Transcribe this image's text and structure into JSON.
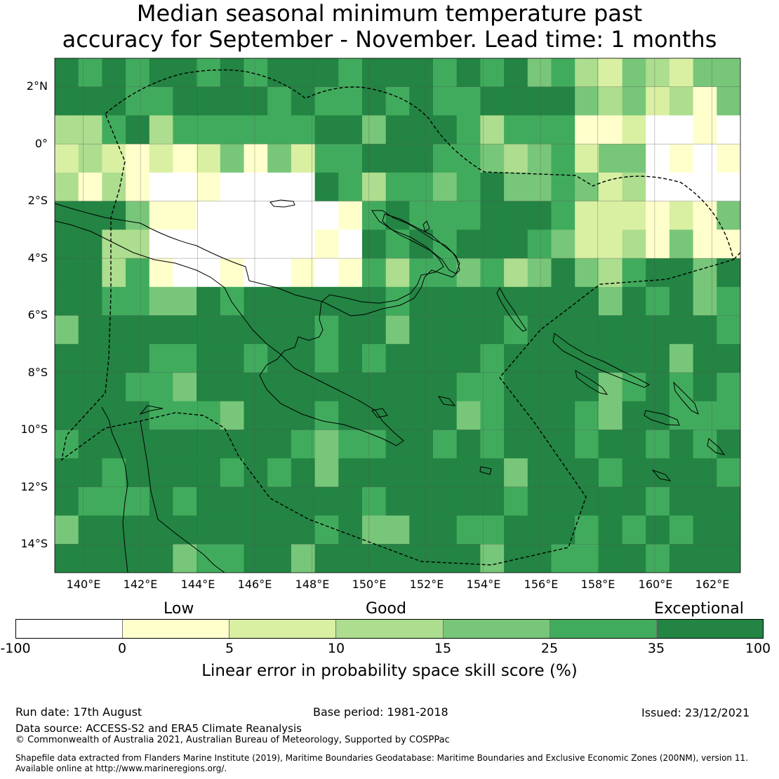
{
  "title": {
    "line1": "Median seasonal minimum temperature past",
    "line2": "accuracy for September - November. Lead time: 1 months"
  },
  "map": {
    "lat_labels": [
      "2°N",
      "0°",
      "2°S",
      "4°S",
      "6°S",
      "8°S",
      "10°S",
      "12°S",
      "14°S"
    ],
    "lon_labels": [
      "140°E",
      "142°E",
      "144°E",
      "146°E",
      "148°E",
      "150°E",
      "152°E",
      "154°E",
      "156°E",
      "158°E",
      "160°E",
      "162°E"
    ]
  },
  "legend": {
    "categories": [
      "Low",
      "Good",
      "Exceptional"
    ],
    "ticks": [
      "-100",
      "0",
      "5",
      "10",
      "15",
      "25",
      "35",
      "100"
    ],
    "colors": [
      "#ffffff",
      "#ffffcc",
      "#d9f0a3",
      "#addd8e",
      "#78c679",
      "#41ab5d",
      "#238443"
    ],
    "label": "Linear error in probability space skill score (%)"
  },
  "footer": {
    "run_date": "Run date: 17th August",
    "base_period": "Base period: 1981-2018",
    "issued": "Issued: 23/12/2021",
    "data_source": "Data source: ACCESS-S2 and ERA5 Climate Reanalysis",
    "copyright": "© Commonwealth of Australia 2021, Australian Bureau of Meteorology, Supported by COSPPac",
    "shapefile_line1": "Shapefile data extracted from Flanders Marine Institute (2019), Maritime Boundaries Geodatabase: Maritime Boundaries and Exclusive Economic Zones (200NM), version 11.",
    "shapefile_line2": "Available online at http://www.marineregions.org/."
  }
}
